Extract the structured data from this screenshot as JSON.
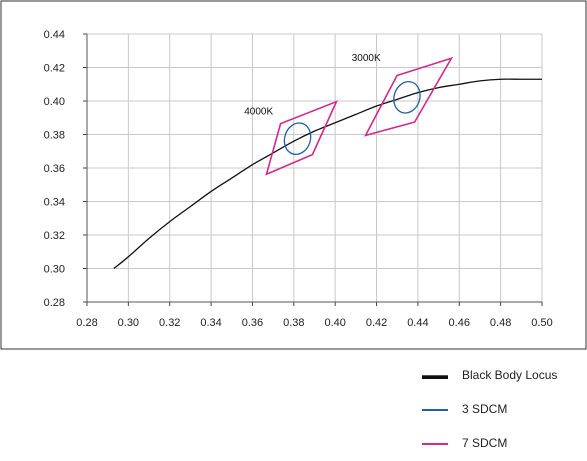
{
  "chart_data": {
    "type": "scatter",
    "title": "",
    "xlabel": "",
    "ylabel": "",
    "xlim": [
      0.28,
      0.5
    ],
    "ylim": [
      0.28,
      0.44
    ],
    "x_ticks": [
      "0.28",
      "0.30",
      "0.32",
      "0.34",
      "0.36",
      "0.38",
      "0.40",
      "0.42",
      "0.44",
      "0.46",
      "0.48",
      "0.50"
    ],
    "y_ticks": [
      "0.28",
      "0.30",
      "0.32",
      "0.34",
      "0.36",
      "0.38",
      "0.40",
      "0.42",
      "0.44"
    ],
    "grid": true,
    "legend_position": "bottom-right",
    "series": [
      {
        "name": "Black Body Locus",
        "color": "#111111",
        "x": [
          0.293,
          0.3,
          0.31,
          0.32,
          0.33,
          0.34,
          0.35,
          0.36,
          0.37,
          0.38,
          0.39,
          0.4,
          0.41,
          0.42,
          0.43,
          0.44,
          0.45,
          0.46,
          0.47,
          0.48,
          0.49,
          0.5
        ],
        "y": [
          0.3,
          0.307,
          0.318,
          0.328,
          0.337,
          0.346,
          0.354,
          0.362,
          0.369,
          0.376,
          0.382,
          0.387,
          0.392,
          0.397,
          0.401,
          0.405,
          0.408,
          0.41,
          0.412,
          0.413,
          0.413,
          0.413
        ]
      },
      {
        "name": "3 SDCM",
        "color": "#1f5fa6",
        "ellipses": [
          {
            "cx": 0.3818,
            "cy": 0.3775,
            "rx": 0.0062,
            "ry": 0.0095,
            "rotation": 18
          },
          {
            "cx": 0.4347,
            "cy": 0.4022,
            "rx": 0.0062,
            "ry": 0.0095,
            "rotation": 18
          }
        ]
      },
      {
        "name": "7 SDCM",
        "color": "#d4288c",
        "quadrangles": [
          [
            [
              0.3736,
              0.3865
            ],
            [
              0.4006,
              0.3996
            ],
            [
              0.389,
              0.368
            ],
            [
              0.3668,
              0.3563
            ]
          ],
          [
            [
              0.4299,
              0.4152
            ],
            [
              0.4562,
              0.4255
            ],
            [
              0.4384,
              0.3874
            ],
            [
              0.4147,
              0.3795
            ]
          ]
        ]
      }
    ],
    "annotations": [
      {
        "text": "4000K",
        "x": 0.37,
        "y": 0.392
      },
      {
        "text": "3000K",
        "x": 0.422,
        "y": 0.424
      }
    ]
  }
}
